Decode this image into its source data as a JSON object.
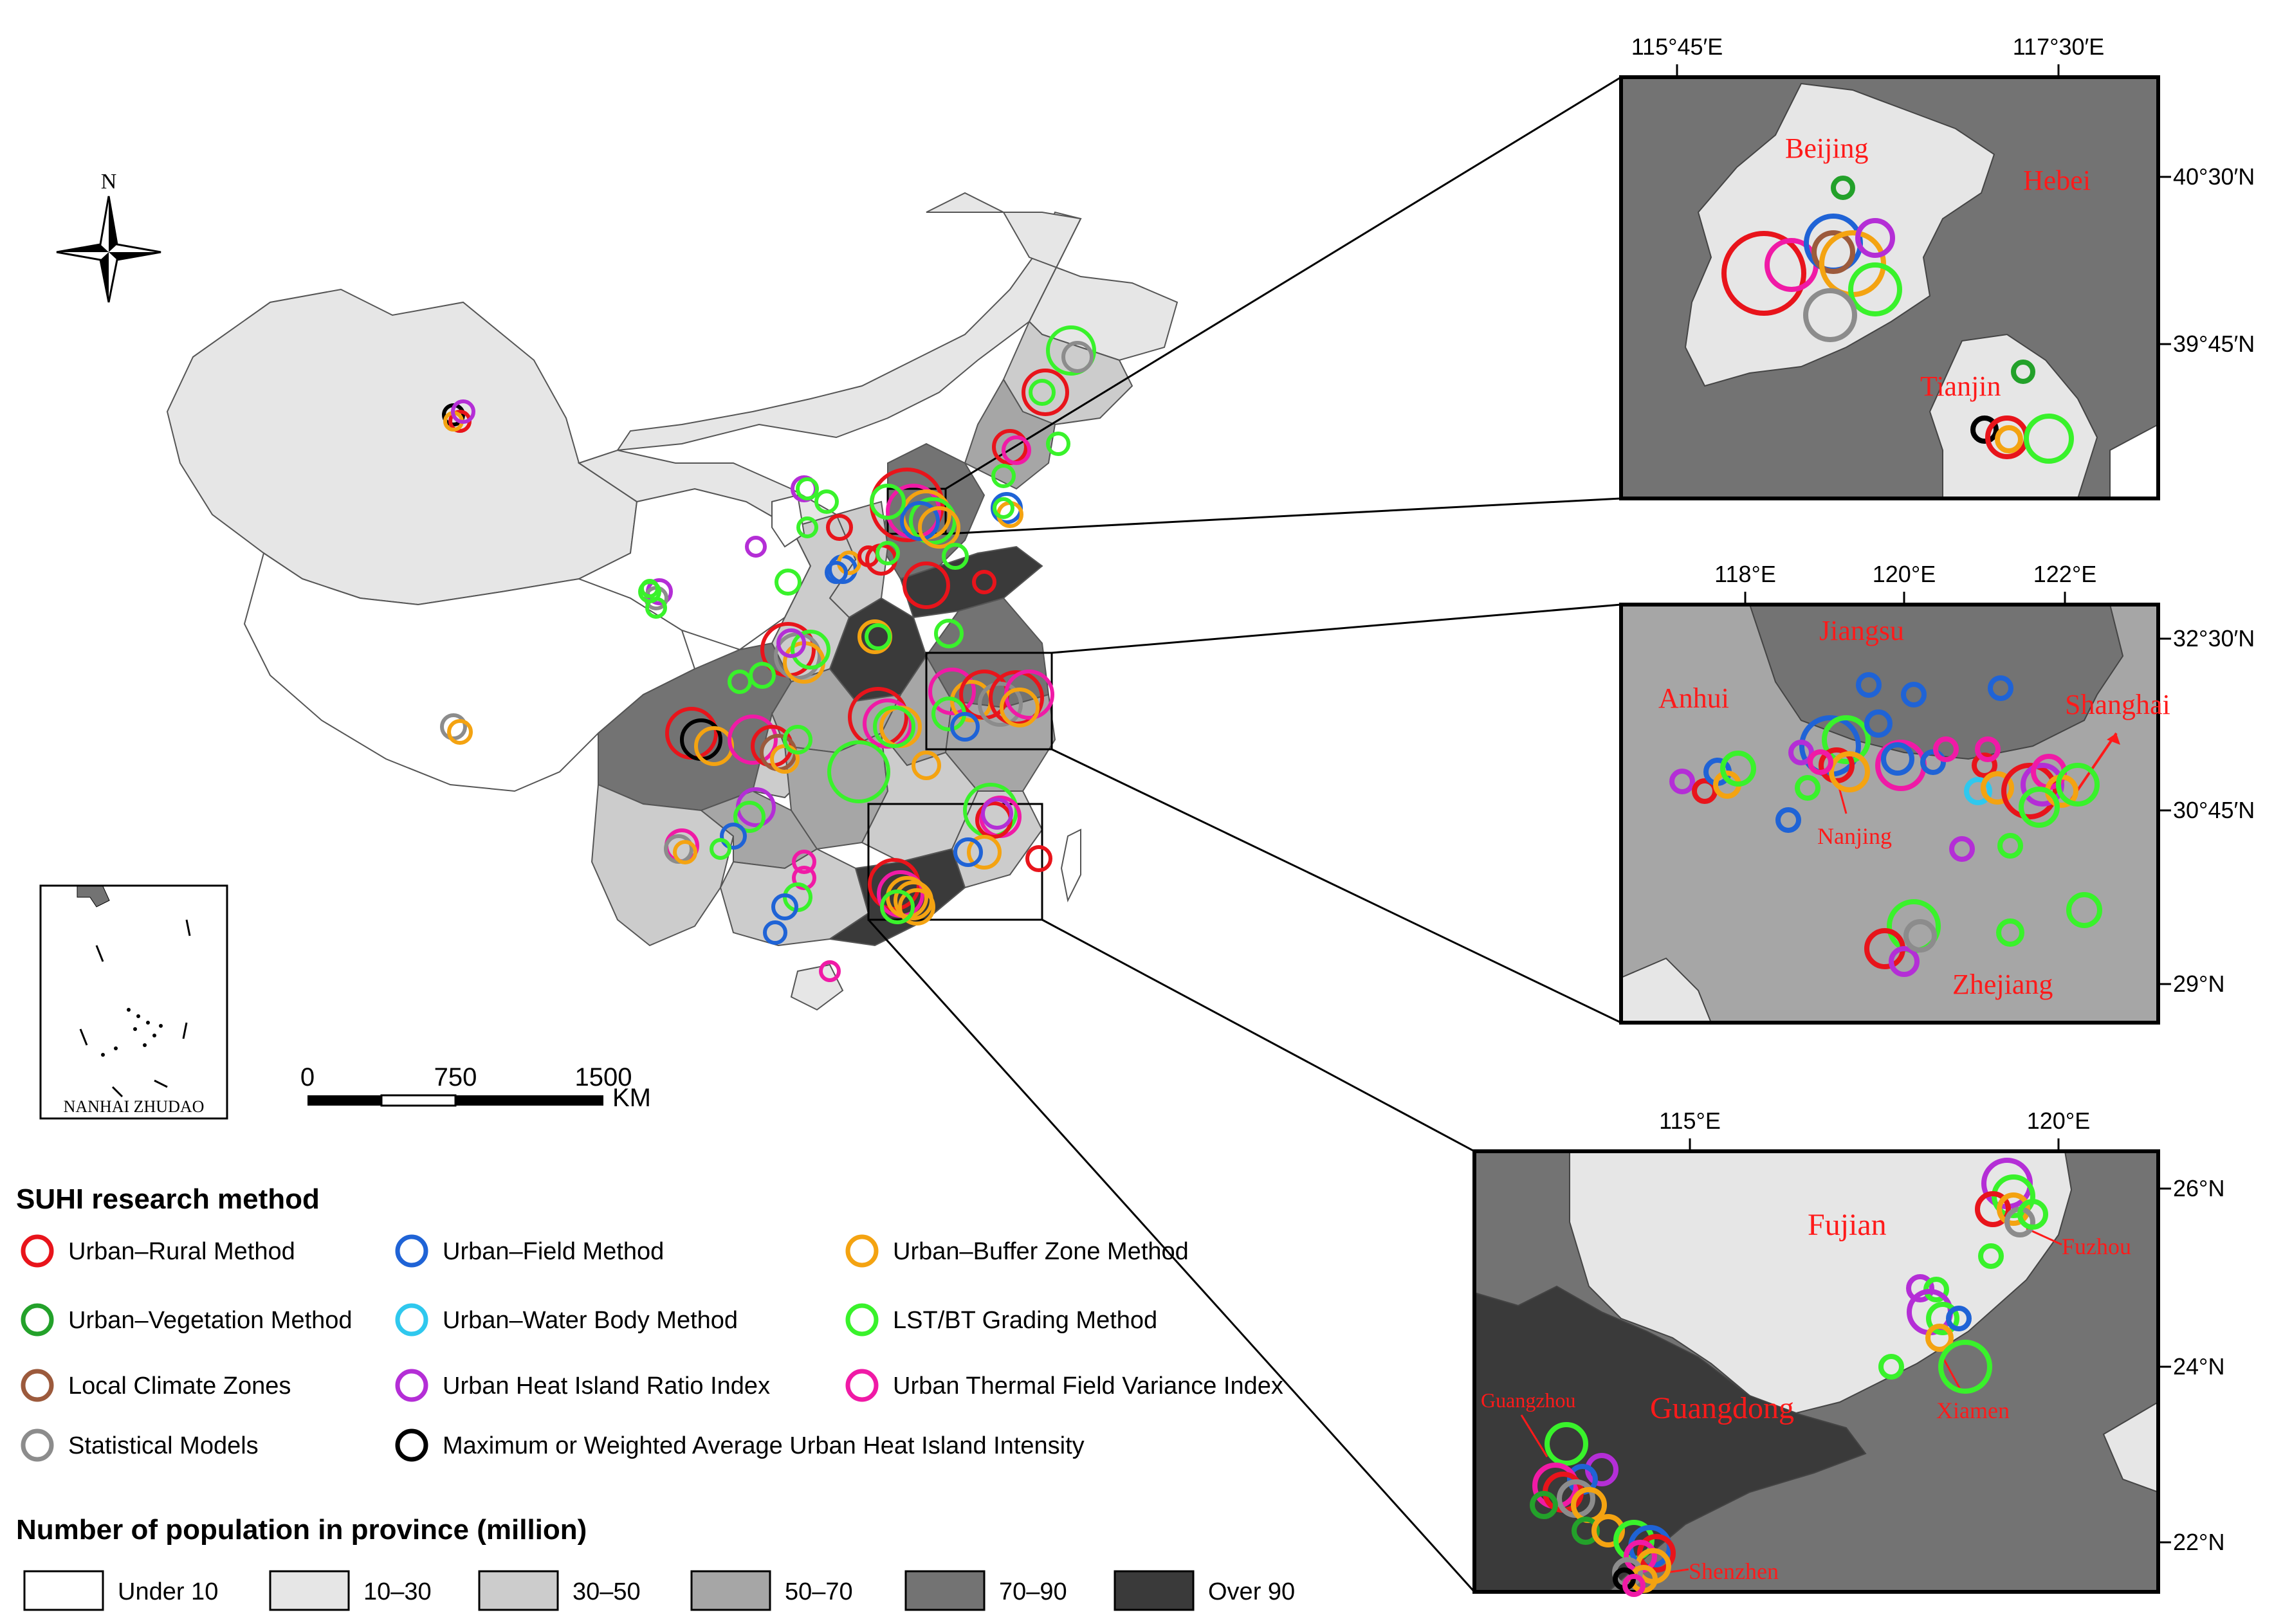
{
  "compass": {
    "north_label": "N"
  },
  "inset_south_sea": {
    "label": "NANHAI  ZHUDAO"
  },
  "scalebar": {
    "ticks": [
      "0",
      "750",
      "1500"
    ],
    "unit": "KM"
  },
  "legend": {
    "methods_title": "SUHI research method",
    "methods": [
      {
        "label": "Urban–Rural Method",
        "color": "#e8141b"
      },
      {
        "label": "Urban–Field Method",
        "color": "#1f63d6"
      },
      {
        "label": "Urban–Buffer Zone Method",
        "color": "#f4a311"
      },
      {
        "label": "Urban–Vegetation Method",
        "color": "#23a12a"
      },
      {
        "label": "Urban–Water Body Method",
        "color": "#2fc8ee"
      },
      {
        "label": "LST/BT Grading Method",
        "color": "#39f22b"
      },
      {
        "label": "Local Climate Zones",
        "color": "#9c5a3c"
      },
      {
        "label": "Urban Heat Island Ratio Index",
        "color": "#b42ed6"
      },
      {
        "label": "Urban Thermal Field Variance Index",
        "color": "#f01aa6"
      },
      {
        "label": "Statistical Models",
        "color": "#8c8c8c"
      },
      {
        "label": "Maximum or Weighted Average Urban Heat Island Intensity",
        "color": "#000000"
      }
    ],
    "population_title": "Number of population in province (million)",
    "population_classes": [
      {
        "label": "Under 10",
        "color": "#ffffff"
      },
      {
        "label": "10–30",
        "color": "#e6e6e6"
      },
      {
        "label": "30–50",
        "color": "#cccccc"
      },
      {
        "label": "50–70",
        "color": "#a6a6a6"
      },
      {
        "label": "70–90",
        "color": "#737373"
      },
      {
        "label": "Over 90",
        "color": "#3a3a3a"
      }
    ]
  },
  "inset_beijing": {
    "top_ticks": [
      "115°45′E",
      "117°30′E"
    ],
    "right_ticks": [
      "40°30′N",
      "39°45′N"
    ],
    "regions": [
      "Beijing",
      "Hebei",
      "Tianjin"
    ]
  },
  "inset_yangtze": {
    "top_ticks": [
      "118°E",
      "120°E",
      "122°E"
    ],
    "right_ticks": [
      "32°30′N",
      "30°45′N",
      "29°N"
    ],
    "regions": [
      "Jiangsu",
      "Anhui",
      "Shanghai",
      "Nanjing",
      "Zhejiang"
    ]
  },
  "inset_prd": {
    "top_ticks": [
      "115°E",
      "120°E"
    ],
    "right_ticks": [
      "26°N",
      "24°N",
      "22°N"
    ],
    "regions": [
      "Fujian",
      "Fuzhou",
      "Guangzhou",
      "Guangdong",
      "Xiamen",
      "Shenzhen"
    ]
  }
}
